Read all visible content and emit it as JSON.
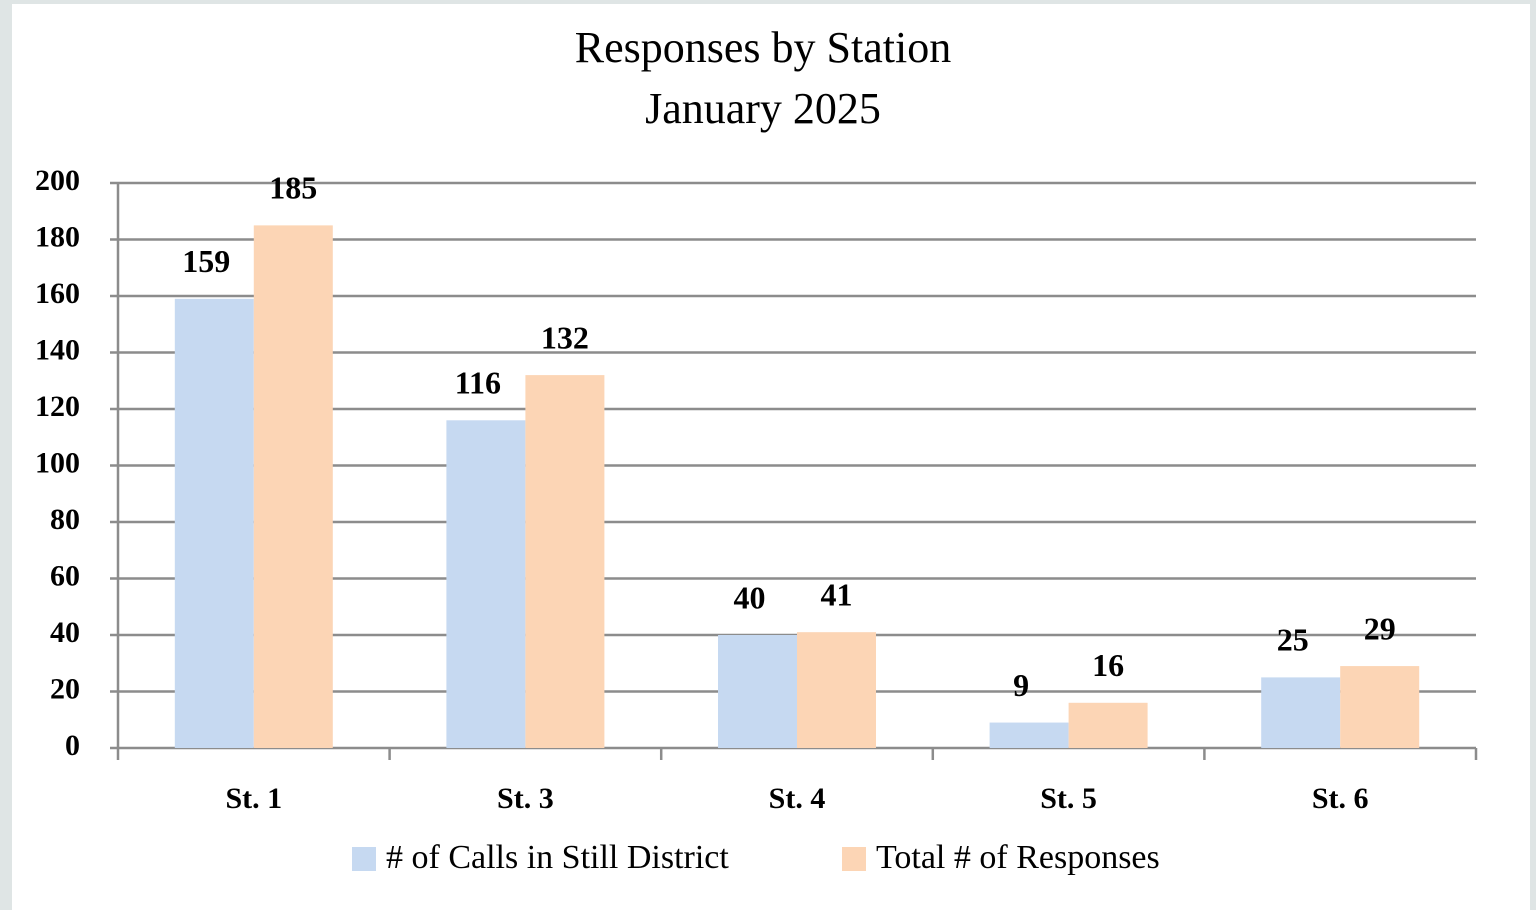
{
  "chart_data": {
    "type": "bar",
    "title": "Responses by Station",
    "subtitle": "January 2025",
    "categories": [
      "St. 1",
      "St. 3",
      "St. 4",
      "St. 5",
      "St. 6"
    ],
    "series": [
      {
        "name": "# of Calls in Still District",
        "color": "#c6d9f1",
        "values": [
          159,
          116,
          40,
          9,
          25
        ]
      },
      {
        "name": "Total # of Responses",
        "color": "#fcd5b5",
        "values": [
          185,
          132,
          41,
          16,
          29
        ]
      }
    ],
    "ylim": [
      0,
      200
    ],
    "yticks": [
      0,
      20,
      40,
      60,
      80,
      100,
      120,
      140,
      160,
      180,
      200
    ],
    "grid": true,
    "legend": "bottom"
  }
}
